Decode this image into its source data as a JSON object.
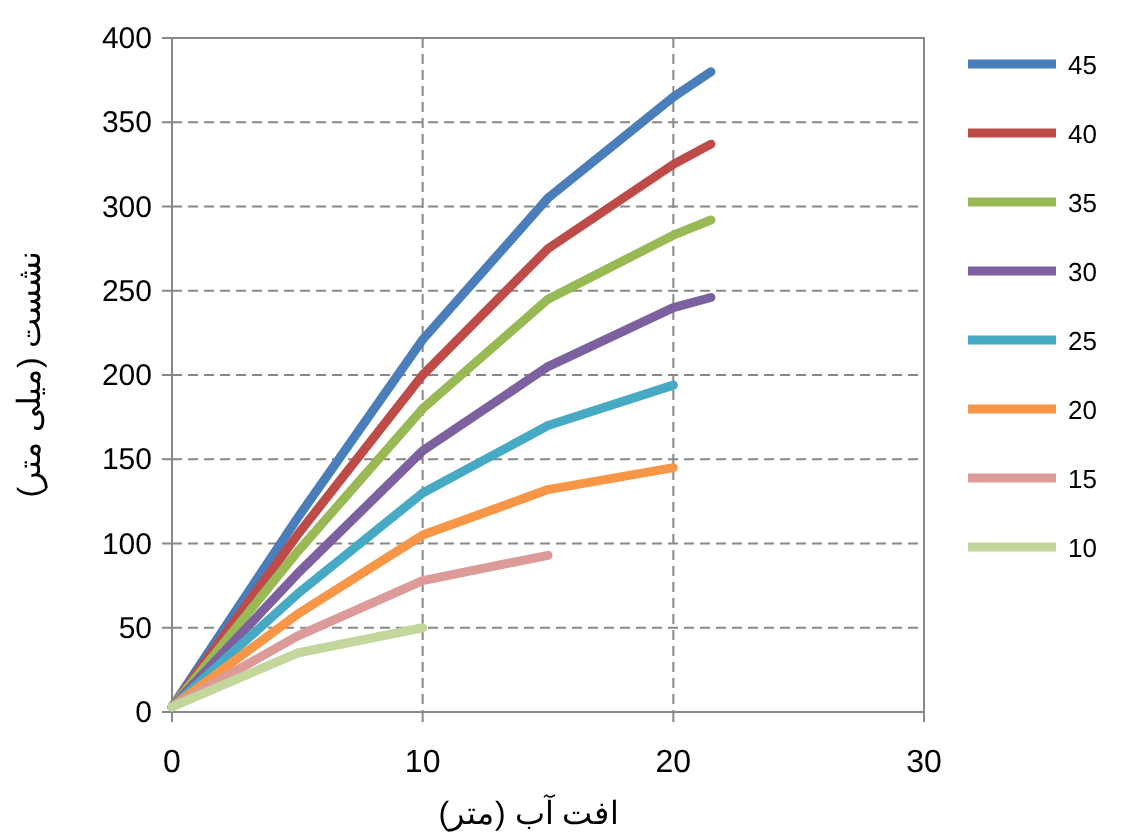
{
  "chart_data": {
    "type": "line",
    "xlabel": "افت آب (متر)",
    "ylabel": "نشست (میلی متر)",
    "xlim": [
      0,
      30
    ],
    "xticks": [
      0,
      10,
      20,
      30
    ],
    "ylim": [
      0,
      400
    ],
    "yticks": [
      0,
      50,
      100,
      150,
      200,
      250,
      300,
      350,
      400
    ],
    "grid": true,
    "legend": "right",
    "marker": "none",
    "line_style": "solid",
    "series": [
      {
        "name": "45",
        "color": "#4a7ebb",
        "x": [
          0,
          5,
          10,
          15,
          20,
          21.5
        ],
        "values": [
          3,
          115,
          221,
          305,
          365,
          380
        ]
      },
      {
        "name": "40",
        "color": "#be4b48",
        "x": [
          0,
          5,
          10,
          15,
          20,
          21.5
        ],
        "values": [
          3,
          105,
          200,
          275,
          325,
          337
        ]
      },
      {
        "name": "35",
        "color": "#98b954",
        "x": [
          0,
          5,
          10,
          15,
          20,
          21.5
        ],
        "values": [
          3,
          95,
          180,
          245,
          283,
          292
        ]
      },
      {
        "name": "30",
        "color": "#7d60a0",
        "x": [
          0,
          5,
          10,
          15,
          20,
          21.5
        ],
        "values": [
          3,
          82,
          155,
          205,
          240,
          246
        ]
      },
      {
        "name": "25",
        "color": "#46aac5",
        "x": [
          0,
          5,
          10,
          15,
          20
        ],
        "values": [
          3,
          70,
          130,
          170,
          194
        ]
      },
      {
        "name": "20",
        "color": "#f79646",
        "x": [
          0,
          5,
          10,
          15,
          20
        ],
        "values": [
          3,
          58,
          105,
          132,
          145
        ]
      },
      {
        "name": "15",
        "color": "#dc9a99",
        "x": [
          0,
          5,
          10,
          15
        ],
        "values": [
          3,
          45,
          78,
          93
        ]
      },
      {
        "name": "10",
        "color": "#c3d69b",
        "x": [
          0,
          5,
          10
        ],
        "values": [
          3,
          35,
          50
        ]
      }
    ]
  }
}
